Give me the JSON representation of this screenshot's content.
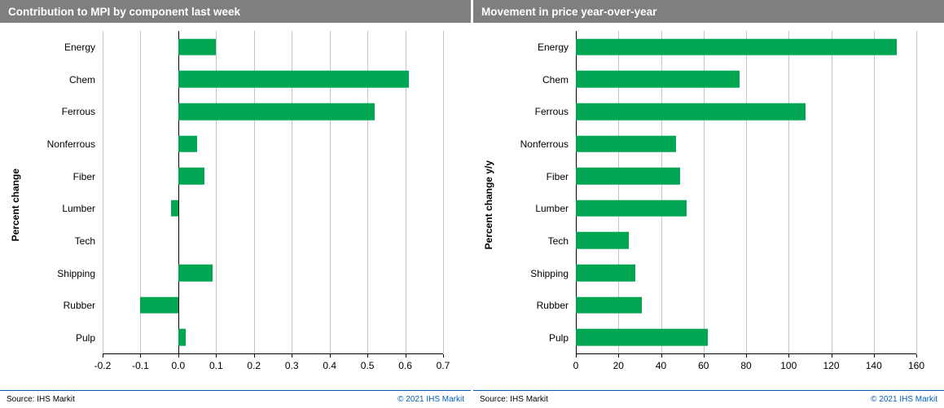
{
  "colors": {
    "bar_green": "#00A651",
    "header_gray": "#7f7f7f",
    "brand_blue": "#005eb8",
    "gridline": "#c6c6c6"
  },
  "panels": [
    {
      "title": "Contribution to MPI by component last week",
      "source": "Source: IHS Markit",
      "copyright": "© 2021  IHS Markit"
    },
    {
      "title": "Movement in price year-over-year",
      "source": "Source: IHS Markit",
      "copyright": "© 2021  IHS Markit"
    }
  ],
  "chart_data": [
    {
      "type": "bar",
      "orientation": "horizontal",
      "title": "Contribution to MPI by component last week",
      "ylabel": "Percent change",
      "xlabel": "",
      "categories": [
        "Energy",
        "Chem",
        "Ferrous",
        "Nonferrous",
        "Fiber",
        "Lumber",
        "Tech",
        "Shipping",
        "Rubber",
        "Pulp"
      ],
      "values": [
        0.1,
        0.61,
        0.52,
        0.05,
        0.07,
        -0.02,
        0.0,
        0.09,
        -0.1,
        0.02
      ],
      "xlim": [
        -0.2,
        0.7
      ],
      "xticks": [
        -0.2,
        -0.1,
        0.0,
        0.1,
        0.2,
        0.3,
        0.4,
        0.5,
        0.6,
        0.7
      ],
      "xtick_labels": [
        "-0.2",
        "-0.1",
        "0.0",
        "0.1",
        "0.2",
        "0.3",
        "0.4",
        "0.5",
        "0.6",
        "0.7"
      ],
      "grid": true,
      "legend": false,
      "bar_color": "#00A651"
    },
    {
      "type": "bar",
      "orientation": "horizontal",
      "title": "Movement in price year-over-year",
      "ylabel": "Percent change y/y",
      "xlabel": "",
      "categories": [
        "Energy",
        "Chem",
        "Ferrous",
        "Nonferrous",
        "Fiber",
        "Lumber",
        "Tech",
        "Shipping",
        "Rubber",
        "Pulp"
      ],
      "values": [
        151,
        77,
        108,
        47,
        49,
        52,
        25,
        28,
        31,
        62
      ],
      "xlim": [
        0,
        160
      ],
      "xticks": [
        0,
        20,
        40,
        60,
        80,
        100,
        120,
        140,
        160
      ],
      "xtick_labels": [
        "0",
        "20",
        "40",
        "60",
        "80",
        "100",
        "120",
        "140",
        "160"
      ],
      "grid": true,
      "legend": false,
      "bar_color": "#00A651"
    }
  ]
}
